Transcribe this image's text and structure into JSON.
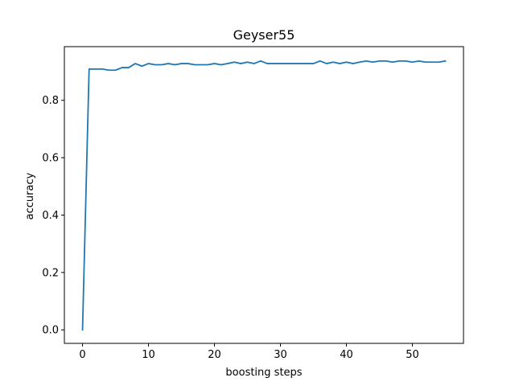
{
  "chart_data": {
    "type": "line",
    "title": "Geyser55",
    "xlabel": "boosting steps",
    "ylabel": "accuracy",
    "xlim": [
      -2.75,
      57.75
    ],
    "ylim": [
      -0.047,
      0.987
    ],
    "xticks": [
      0,
      10,
      20,
      30,
      40,
      50
    ],
    "yticks": [
      0.0,
      0.2,
      0.4,
      0.6,
      0.8
    ],
    "ytick_labels": [
      "0.0",
      "0.2",
      "0.4",
      "0.6",
      "0.8"
    ],
    "grid": false,
    "series": [
      {
        "color": "#1f77b4",
        "x": [
          0,
          1,
          2,
          3,
          4,
          5,
          6,
          7,
          8,
          9,
          10,
          11,
          12,
          13,
          14,
          15,
          16,
          17,
          18,
          19,
          20,
          21,
          22,
          23,
          24,
          25,
          26,
          27,
          28,
          29,
          30,
          31,
          32,
          33,
          34,
          35,
          36,
          37,
          38,
          39,
          40,
          41,
          42,
          43,
          44,
          45,
          46,
          47,
          48,
          49,
          50,
          51,
          52,
          53,
          54,
          55
        ],
        "values": [
          0.0,
          0.909,
          0.909,
          0.909,
          0.905,
          0.905,
          0.914,
          0.914,
          0.928,
          0.919,
          0.928,
          0.924,
          0.924,
          0.928,
          0.924,
          0.928,
          0.928,
          0.924,
          0.924,
          0.924,
          0.928,
          0.924,
          0.928,
          0.933,
          0.928,
          0.933,
          0.928,
          0.937,
          0.928,
          0.928,
          0.928,
          0.928,
          0.928,
          0.928,
          0.928,
          0.928,
          0.937,
          0.928,
          0.933,
          0.928,
          0.933,
          0.928,
          0.933,
          0.937,
          0.933,
          0.937,
          0.937,
          0.933,
          0.937,
          0.937,
          0.933,
          0.937,
          0.933,
          0.933,
          0.933,
          0.937
        ]
      }
    ]
  }
}
